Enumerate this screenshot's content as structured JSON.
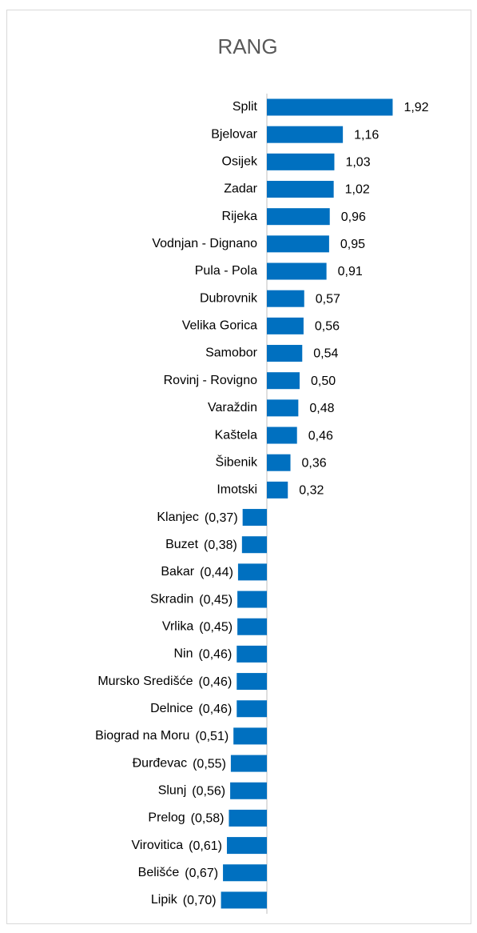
{
  "chart_data": {
    "type": "bar",
    "orientation": "horizontal",
    "title": "RANG",
    "color": "#0070c0",
    "categories": [
      "Split",
      "Bjelovar",
      "Osijek",
      "Zadar",
      "Rijeka",
      "Vodnjan - Dignano",
      "Pula - Pola",
      "Dubrovnik",
      "Velika Gorica",
      "Samobor",
      "Rovinj - Rovigno",
      "Varaždin",
      "Kaštela",
      "Šibenik",
      "Imotski",
      "Klanjec",
      "Buzet",
      "Bakar",
      "Skradin",
      "Vrlika",
      "Nin",
      "Mursko Središće",
      "Delnice",
      "Biograd na Moru",
      "Đurđevac",
      "Slunj",
      "Prelog",
      "Virovitica",
      "Belišće",
      "Lipik"
    ],
    "values": [
      1.92,
      1.16,
      1.03,
      1.02,
      0.96,
      0.95,
      0.91,
      0.57,
      0.56,
      0.54,
      0.5,
      0.48,
      0.46,
      0.36,
      0.32,
      -0.37,
      -0.38,
      -0.44,
      -0.45,
      -0.45,
      -0.46,
      -0.46,
      -0.46,
      -0.51,
      -0.55,
      -0.56,
      -0.58,
      -0.61,
      -0.67,
      -0.7
    ],
    "value_labels": [
      "1,92",
      "1,16",
      "1,03",
      "1,02",
      "0,96",
      "0,95",
      "0,91",
      "0,57",
      "0,56",
      "0,54",
      "0,50",
      "0,48",
      "0,46",
      "0,36",
      "0,32",
      "(0,37)",
      "(0,38)",
      "(0,44)",
      "(0,45)",
      "(0,45)",
      "(0,46)",
      "(0,46)",
      "(0,46)",
      "(0,51)",
      "(0,55)",
      "(0,56)",
      "(0,58)",
      "(0,61)",
      "(0,67)",
      "(0,70)"
    ]
  }
}
